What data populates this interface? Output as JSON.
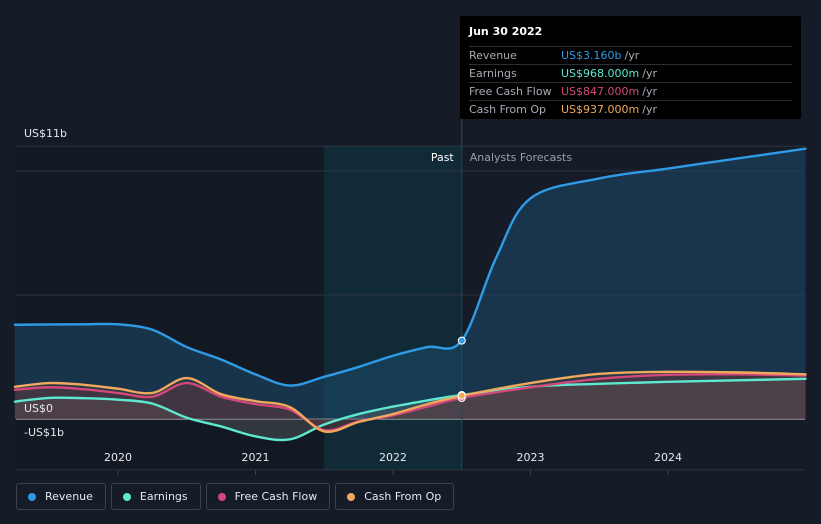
{
  "chart_data": {
    "type": "area",
    "y_axis": {
      "top_label": "US$11b",
      "zero_label": "US$0",
      "bottom_label": "-US$1b",
      "ylim": [
        -1,
        11
      ],
      "unit": "US$b"
    },
    "x_ticks": [
      "2020",
      "2021",
      "2022",
      "2023",
      "2024"
    ],
    "sections": {
      "past": "Past",
      "forecast": "Analysts Forecasts"
    },
    "divider_x": 2022.5,
    "highlight_range": [
      2021.5,
      2022.5
    ],
    "series": [
      {
        "name": "Revenue",
        "color": "#2f9be6",
        "points": [
          [
            2019.25,
            3.8
          ],
          [
            2019.75,
            3.82
          ],
          [
            2020.0,
            3.82
          ],
          [
            2020.25,
            3.6
          ],
          [
            2020.5,
            2.9
          ],
          [
            2020.75,
            2.4
          ],
          [
            2021.0,
            1.8
          ],
          [
            2021.25,
            1.35
          ],
          [
            2021.5,
            1.7
          ],
          [
            2021.75,
            2.1
          ],
          [
            2022.0,
            2.55
          ],
          [
            2022.25,
            2.9
          ],
          [
            2022.5,
            3.16
          ],
          [
            2022.75,
            6.5
          ],
          [
            2023.0,
            8.9
          ],
          [
            2023.5,
            9.7
          ],
          [
            2024.0,
            10.1
          ],
          [
            2024.5,
            10.5
          ],
          [
            2025.0,
            10.9
          ]
        ]
      },
      {
        "name": "Earnings",
        "color": "#5ee8cf",
        "points": [
          [
            2019.25,
            0.7
          ],
          [
            2019.5,
            0.85
          ],
          [
            2019.75,
            0.84
          ],
          [
            2020.0,
            0.78
          ],
          [
            2020.25,
            0.62
          ],
          [
            2020.5,
            0.05
          ],
          [
            2020.75,
            -0.3
          ],
          [
            2021.0,
            -0.7
          ],
          [
            2021.25,
            -0.82
          ],
          [
            2021.5,
            -0.22
          ],
          [
            2021.75,
            0.2
          ],
          [
            2022.0,
            0.5
          ],
          [
            2022.25,
            0.75
          ],
          [
            2022.5,
            0.968
          ],
          [
            2023.0,
            1.3
          ],
          [
            2023.5,
            1.42
          ],
          [
            2024.0,
            1.5
          ],
          [
            2024.5,
            1.56
          ],
          [
            2025.0,
            1.62
          ]
        ]
      },
      {
        "name": "Free Cash Flow",
        "color": "#d2487a",
        "points": [
          [
            2019.25,
            1.18
          ],
          [
            2019.5,
            1.28
          ],
          [
            2019.75,
            1.2
          ],
          [
            2020.0,
            1.05
          ],
          [
            2020.25,
            0.9
          ],
          [
            2020.5,
            1.45
          ],
          [
            2020.75,
            0.9
          ],
          [
            2021.0,
            0.6
          ],
          [
            2021.25,
            0.38
          ],
          [
            2021.5,
            -0.45
          ],
          [
            2021.75,
            -0.1
          ],
          [
            2022.0,
            0.15
          ],
          [
            2022.25,
            0.5
          ],
          [
            2022.5,
            0.847
          ],
          [
            2023.0,
            1.28
          ],
          [
            2023.5,
            1.62
          ],
          [
            2024.0,
            1.78
          ],
          [
            2024.5,
            1.8
          ],
          [
            2025.0,
            1.75
          ]
        ]
      },
      {
        "name": "Cash From Op",
        "color": "#f0a95c",
        "points": [
          [
            2019.25,
            1.3
          ],
          [
            2019.5,
            1.45
          ],
          [
            2019.75,
            1.38
          ],
          [
            2020.0,
            1.22
          ],
          [
            2020.25,
            1.05
          ],
          [
            2020.5,
            1.65
          ],
          [
            2020.75,
            1.0
          ],
          [
            2021.0,
            0.72
          ],
          [
            2021.25,
            0.48
          ],
          [
            2021.5,
            -0.5
          ],
          [
            2021.75,
            -0.12
          ],
          [
            2022.0,
            0.2
          ],
          [
            2022.25,
            0.6
          ],
          [
            2022.5,
            0.937
          ],
          [
            2023.0,
            1.45
          ],
          [
            2023.5,
            1.82
          ],
          [
            2024.0,
            1.9
          ],
          [
            2024.5,
            1.88
          ],
          [
            2025.0,
            1.8
          ]
        ]
      }
    ]
  },
  "tooltip": {
    "date": "Jun 30 2022",
    "rows": [
      {
        "name": "Revenue",
        "value": "US$3.160b",
        "unit": "/yr",
        "color": "#2f9be6"
      },
      {
        "name": "Earnings",
        "value": "US$968.000m",
        "unit": "/yr",
        "color": "#5ee8cf"
      },
      {
        "name": "Free Cash Flow",
        "value": "US$847.000m",
        "unit": "/yr",
        "color": "#d2487a"
      },
      {
        "name": "Cash From Op",
        "value": "US$937.000m",
        "unit": "/yr",
        "color": "#f0a95c"
      }
    ]
  },
  "legend": [
    {
      "label": "Revenue",
      "color": "#2f9be6"
    },
    {
      "label": "Earnings",
      "color": "#5ee8cf"
    },
    {
      "label": "Free Cash Flow",
      "color": "#d2487a"
    },
    {
      "label": "Cash From Op",
      "color": "#f0a95c"
    }
  ]
}
